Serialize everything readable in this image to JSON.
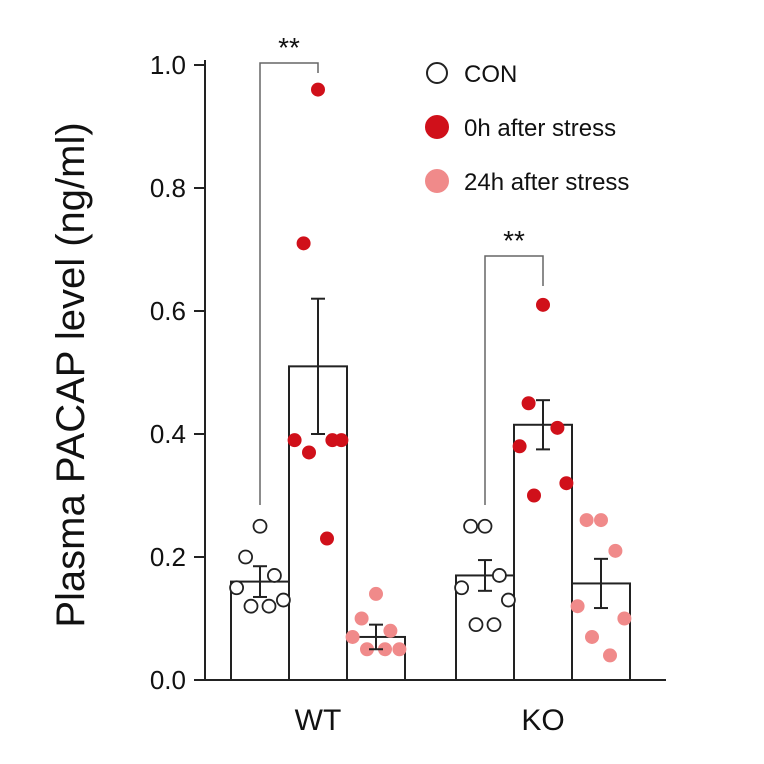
{
  "chart_data": {
    "type": "bar",
    "ylabel": "Plasma PACAP level (ng/ml)",
    "ylim": [
      0,
      1.0
    ],
    "yticks": [
      "0.0",
      "0.2",
      "0.4",
      "0.6",
      "0.8",
      "1.0"
    ],
    "ytick_values": [
      0.0,
      0.2,
      0.4,
      0.6,
      0.8,
      1.0
    ],
    "categories": [
      "WT",
      "KO"
    ],
    "legend": [
      {
        "label": "CON",
        "style": "open",
        "color": "#222222"
      },
      {
        "label": "0h after stress",
        "style": "filled",
        "color": "#d0101a"
      },
      {
        "label": "24h after stress",
        "style": "filled",
        "color": "#f08a8a"
      }
    ],
    "series": [
      {
        "name": "CON",
        "values": [
          0.16,
          0.17
        ],
        "sem": [
          0.025,
          0.025
        ],
        "points": [
          [
            0.25,
            0.2,
            0.17,
            0.15,
            0.13,
            0.12,
            0.12
          ],
          [
            0.25,
            0.25,
            0.17,
            0.15,
            0.13,
            0.09,
            0.09
          ]
        ]
      },
      {
        "name": "0h after stress",
        "values": [
          0.51,
          0.415
        ],
        "sem": [
          0.11,
          0.04
        ],
        "points": [
          [
            0.96,
            0.71,
            0.39,
            0.39,
            0.39,
            0.37,
            0.23
          ],
          [
            0.61,
            0.45,
            0.41,
            0.38,
            0.32,
            0.3
          ]
        ]
      },
      {
        "name": "24h after stress",
        "values": [
          0.07,
          0.157
        ],
        "sem": [
          0.02,
          0.04
        ],
        "points": [
          [
            0.14,
            0.1,
            0.08,
            0.07,
            0.05,
            0.05,
            0.05
          ],
          [
            0.26,
            0.26,
            0.21,
            0.12,
            0.1,
            0.07,
            0.04
          ]
        ]
      }
    ],
    "annotations": [
      {
        "text": "**",
        "category": "WT",
        "from": "CON",
        "to": "0h after stress"
      },
      {
        "text": "**",
        "category": "KO",
        "from": "CON",
        "to": "0h after stress"
      }
    ]
  }
}
